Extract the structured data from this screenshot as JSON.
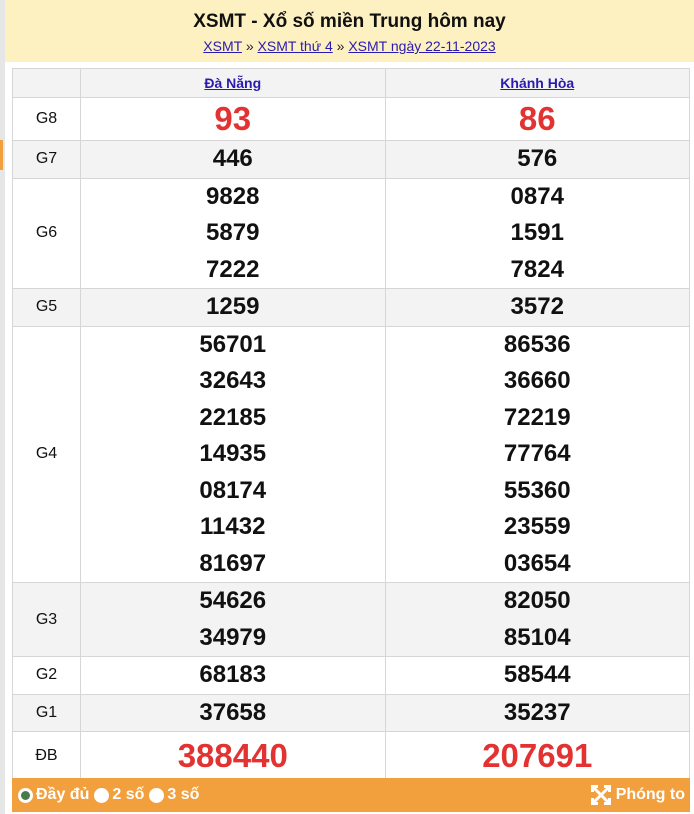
{
  "header": {
    "title": "XSMT - Xổ số miền Trung hôm nay",
    "breadcrumb": [
      {
        "label": "XSMT"
      },
      {
        "label": "XSMT thứ 4"
      },
      {
        "label": "XSMT ngày 22-11-2023"
      }
    ],
    "separator": "»"
  },
  "table": {
    "provinces": [
      "Đà Nẵng",
      "Khánh Hòa"
    ],
    "rows": [
      {
        "label": "G8",
        "values": [
          [
            "93"
          ],
          [
            "86"
          ]
        ]
      },
      {
        "label": "G7",
        "values": [
          [
            "446"
          ],
          [
            "576"
          ]
        ]
      },
      {
        "label": "G6",
        "values": [
          [
            "9828",
            "5879",
            "7222"
          ],
          [
            "0874",
            "1591",
            "7824"
          ]
        ]
      },
      {
        "label": "G5",
        "values": [
          [
            "1259"
          ],
          [
            "3572"
          ]
        ]
      },
      {
        "label": "G4",
        "values": [
          [
            "56701",
            "32643",
            "22185",
            "14935",
            "08174",
            "11432",
            "81697"
          ],
          [
            "86536",
            "36660",
            "72219",
            "77764",
            "55360",
            "23559",
            "03654"
          ]
        ]
      },
      {
        "label": "G3",
        "values": [
          [
            "54626",
            "34979"
          ],
          [
            "82050",
            "85104"
          ]
        ]
      },
      {
        "label": "G2",
        "values": [
          [
            "68183"
          ],
          [
            "58544"
          ]
        ]
      },
      {
        "label": "G1",
        "values": [
          [
            "37658"
          ],
          [
            "35237"
          ]
        ]
      },
      {
        "label": "ĐB",
        "values": [
          [
            "388440"
          ],
          [
            "207691"
          ]
        ]
      }
    ]
  },
  "footer": {
    "options": [
      {
        "label": "Đầy đủ",
        "selected": true
      },
      {
        "label": "2 số",
        "selected": false
      },
      {
        "label": "3 số",
        "selected": false
      }
    ],
    "zoom_label": "Phóng to"
  },
  "colors": {
    "header_bg": "#fdf1c2",
    "footer_bg": "#f2a03d",
    "prize_red": "#e23232",
    "link": "#2a1bb0"
  }
}
